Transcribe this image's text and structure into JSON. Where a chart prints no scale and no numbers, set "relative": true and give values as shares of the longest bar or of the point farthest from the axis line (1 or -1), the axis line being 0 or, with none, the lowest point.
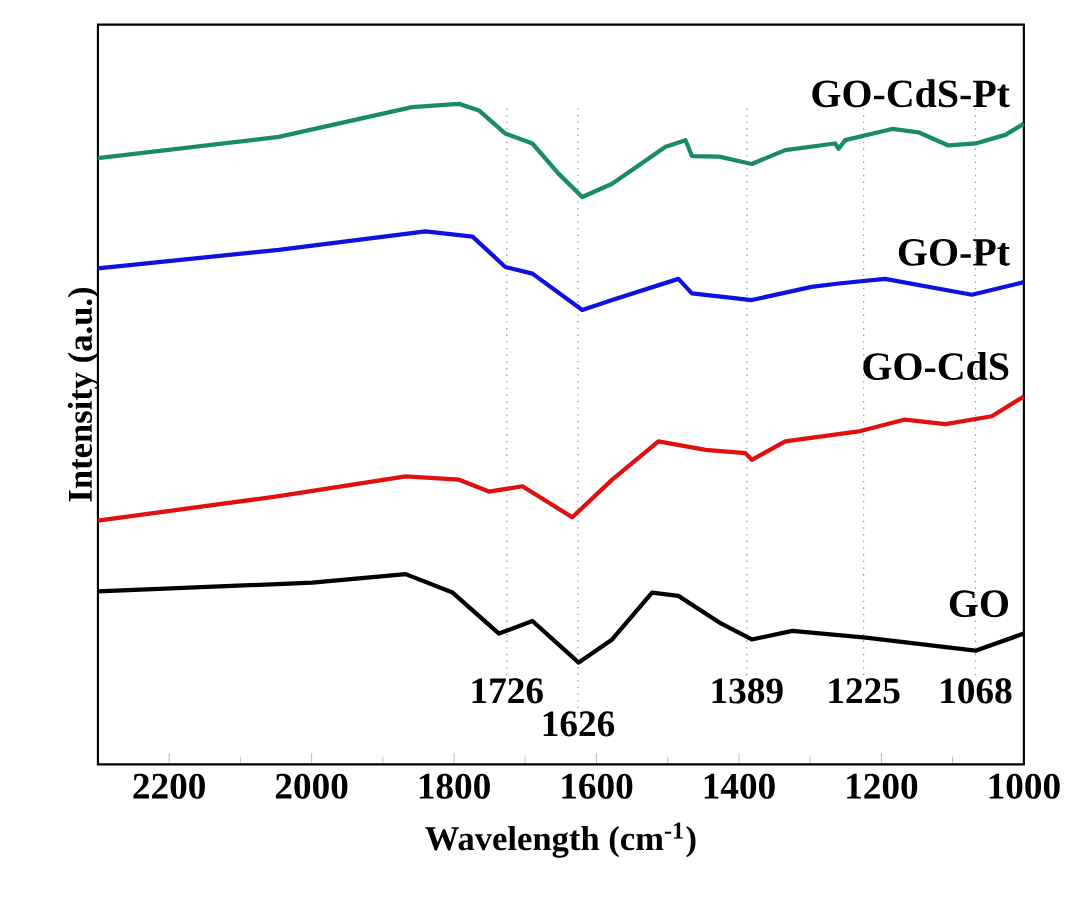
{
  "chart_data": {
    "type": "line",
    "relative": true,
    "xlabel": "Wavelength (cm$^{-1}$)",
    "ylabel": "Intensity (a.u.)",
    "xlim": [
      2300,
      1000
    ],
    "xticks": [
      2200,
      2000,
      1800,
      1600,
      1400,
      1200,
      1000
    ],
    "grid": false,
    "marker": "none",
    "line_style": "solid",
    "ref_lines": [
      {
        "axis": "x",
        "value": 1726,
        "label": "1726",
        "color": "#999999",
        "line_style": "dotted"
      },
      {
        "axis": "x",
        "value": 1626,
        "label": "1626",
        "color": "#999999",
        "line_style": "dotted"
      },
      {
        "axis": "x",
        "value": 1389,
        "label": "1389",
        "color": "#999999",
        "line_style": "dotted"
      },
      {
        "axis": "x",
        "value": 1225,
        "label": "1225",
        "color": "#999999",
        "line_style": "dotted"
      },
      {
        "axis": "x",
        "value": 1068,
        "label": "1068",
        "color": "#999999",
        "line_style": "dotted"
      }
    ],
    "series": [
      {
        "name": "GO-CdS-Pt",
        "color": "#1a8a6a",
        "x": [
          2300,
          2046,
          1859,
          1793,
          1765,
          1728,
          1690,
          1653,
          1620,
          1578,
          1503,
          1475,
          1466,
          1428,
          1382,
          1335,
          1265,
          1260,
          1251,
          1185,
          1148,
          1106,
          1068,
          1026,
          1000
        ],
        "values": [
          0.918,
          0.95,
          0.995,
          1.0,
          0.99,
          0.955,
          0.94,
          0.894,
          0.859,
          0.879,
          0.935,
          0.945,
          0.921,
          0.92,
          0.909,
          0.93,
          0.94,
          0.932,
          0.945,
          0.962,
          0.957,
          0.937,
          0.94,
          0.953,
          0.97
        ]
      },
      {
        "name": "GO-Pt",
        "color": "#1010e0",
        "x": [
          2300,
          2046,
          1840,
          1774,
          1728,
          1690,
          1620,
          1578,
          1485,
          1466,
          1382,
          1298,
          1260,
          1195,
          1073,
          1000
        ],
        "values": [
          0.751,
          0.779,
          0.807,
          0.799,
          0.753,
          0.743,
          0.688,
          0.703,
          0.735,
          0.713,
          0.703,
          0.723,
          0.728,
          0.735,
          0.711,
          0.73
        ]
      },
      {
        "name": "GO-CdS",
        "color": "#e01010",
        "x": [
          2300,
          2046,
          1868,
          1793,
          1751,
          1704,
          1634,
          1578,
          1513,
          1447,
          1391,
          1382,
          1335,
          1232,
          1167,
          1110,
          1045,
          1000
        ],
        "values": [
          0.369,
          0.406,
          0.436,
          0.431,
          0.413,
          0.421,
          0.374,
          0.431,
          0.489,
          0.476,
          0.471,
          0.461,
          0.489,
          0.504,
          0.522,
          0.515,
          0.527,
          0.557
        ]
      },
      {
        "name": "GO",
        "color": "#000000",
        "x": [
          2300,
          1999,
          1868,
          1802,
          1737,
          1690,
          1625,
          1578,
          1522,
          1485,
          1428,
          1382,
          1325,
          1222,
          1068,
          1000
        ],
        "values": [
          0.262,
          0.275,
          0.288,
          0.26,
          0.198,
          0.217,
          0.154,
          0.189,
          0.26,
          0.255,
          0.215,
          0.189,
          0.202,
          0.192,
          0.172,
          0.198
        ]
      }
    ]
  }
}
